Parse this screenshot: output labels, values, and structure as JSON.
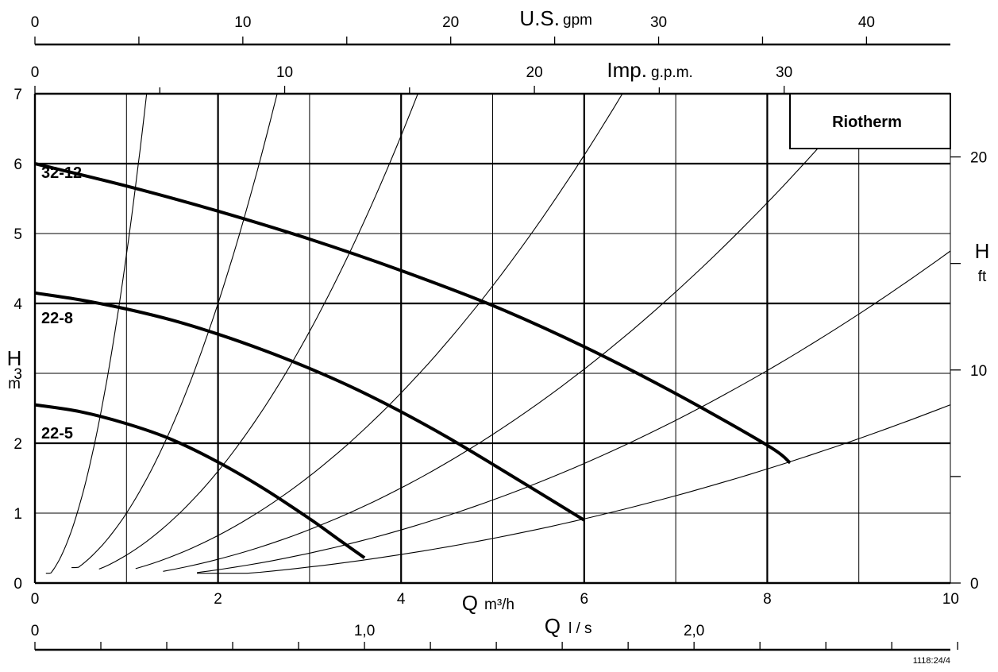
{
  "chart_data": {
    "type": "line",
    "title": "",
    "brand": "Riotherm",
    "reference": "1118:24/4",
    "x_axis": {
      "label": "Q",
      "unit": "m³/h",
      "lim": [
        0,
        10
      ],
      "ticks": [
        0,
        2,
        4,
        6,
        8,
        10
      ],
      "grid_minor": [
        1,
        3,
        5,
        7,
        9
      ],
      "grid_major": [
        2,
        4,
        6,
        8
      ]
    },
    "y_axis": {
      "label": "H",
      "unit": "m",
      "lim": [
        0,
        7
      ],
      "ticks": [
        0,
        1,
        2,
        3,
        4,
        5,
        6,
        7
      ],
      "grid_major": [
        2,
        4,
        6
      ],
      "grid_minor": [
        1,
        3,
        5
      ]
    },
    "y_axis_right": {
      "label": "H",
      "unit": "ft",
      "ticks_labeled": [
        "0",
        "10",
        "20"
      ],
      "ticks_labeled_values": [
        0,
        10,
        20
      ],
      "ticks_unlabeled_values": [
        5,
        15
      ],
      "factor_m_per_unit": 0.3048
    },
    "top_axis_us": {
      "label": "U.S.",
      "unit": "gpm",
      "ticks_labeled": [
        "0",
        "10",
        "20",
        "30",
        "40"
      ],
      "ticks_labeled_values": [
        0,
        10,
        20,
        30,
        40
      ],
      "ticks_minor_values": [
        5,
        15,
        25,
        35
      ],
      "factor_m3h_per_unit": 0.2271
    },
    "top_axis_imp": {
      "label": "Imp.",
      "unit": "g.p.m.",
      "ticks_labeled": [
        "0",
        "10",
        "20",
        "30"
      ],
      "ticks_labeled_values": [
        0,
        10,
        20,
        30
      ],
      "ticks_minor_values": [
        5,
        15,
        25
      ],
      "factor_m3h_per_unit": 0.2728
    },
    "bottom_axis_ls": {
      "label": "Q",
      "unit": "l / s",
      "ticks_labeled": [
        "0",
        "1,0",
        "2,0"
      ],
      "ticks_labeled_values": [
        0,
        1.0,
        2.0
      ],
      "ticks_minor_values": [
        0.2,
        0.4,
        0.6,
        0.8,
        1.2,
        1.4,
        1.6,
        1.8,
        2.2,
        2.4,
        2.6,
        2.8
      ],
      "factor_m3h_per_unit": 3.6
    },
    "series": [
      {
        "name": "32-12",
        "x": [
          0,
          1,
          2,
          3,
          4,
          5,
          6,
          7,
          8,
          8.25
        ],
        "y": [
          6.0,
          5.68,
          5.32,
          4.92,
          4.47,
          3.97,
          3.38,
          2.71,
          1.97,
          1.72
        ]
      },
      {
        "name": "22-8",
        "x": [
          0,
          0.5,
          1,
          1.5,
          2,
          2.5,
          3,
          3.5,
          4,
          4.5,
          5,
          5.5,
          6
        ],
        "y": [
          4.15,
          4.05,
          3.92,
          3.76,
          3.56,
          3.33,
          3.07,
          2.78,
          2.45,
          2.09,
          1.7,
          1.3,
          0.9
        ]
      },
      {
        "name": "22-5",
        "x": [
          0,
          0.5,
          1,
          1.5,
          2,
          2.5,
          3,
          3.3,
          3.6
        ],
        "y": [
          2.55,
          2.45,
          2.28,
          2.05,
          1.73,
          1.35,
          0.92,
          0.64,
          0.36
        ]
      }
    ],
    "system_curves": {
      "y_end": 7,
      "k": [
        4.7,
        1.0,
        0.4,
        0.17,
        0.085,
        0.0475,
        0.0255
      ],
      "x_start": [
        0.12,
        0.4,
        0.7,
        1.1,
        1.4,
        1.77,
        1.77
      ],
      "y_start": [
        0.14,
        0.22,
        0.2,
        0.2,
        0.15,
        0.14,
        0.14
      ]
    }
  }
}
